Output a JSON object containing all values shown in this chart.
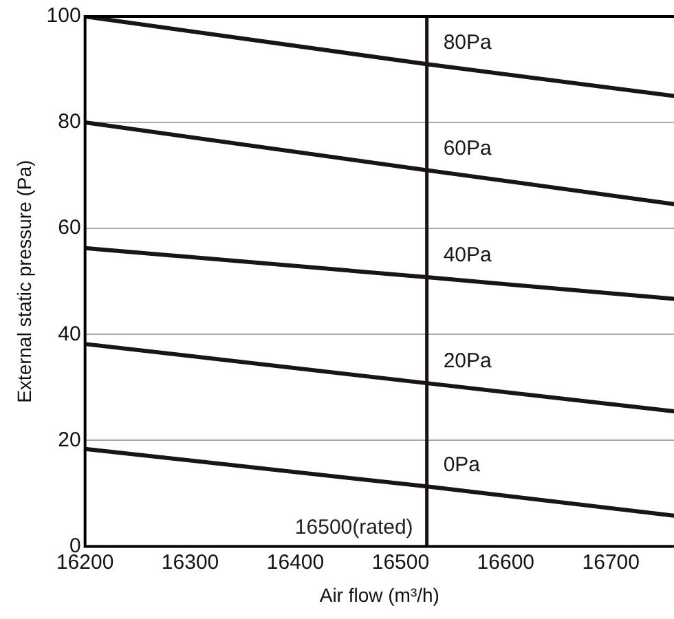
{
  "chart_data": {
    "type": "line",
    "xlabel": "Air flow (m³/h)",
    "ylabel": "External static pressure (Pa)",
    "x": [
      16200,
      16525,
      16760
    ],
    "series": [
      {
        "name": "80Pa",
        "color": "#1a1414",
        "values": [
          100,
          91,
          85
        ]
      },
      {
        "name": "60Pa",
        "color": "#1a1414",
        "values": [
          80,
          71,
          64.6
        ]
      },
      {
        "name": "40Pa",
        "color": "#1a1414",
        "values": [
          56.3,
          50.8,
          46.7
        ]
      },
      {
        "name": "20Pa",
        "color": "#1a1414",
        "values": [
          38.2,
          30.8,
          25.5
        ]
      },
      {
        "name": "0Pa",
        "color": "#1a1414",
        "values": [
          18.4,
          11.3,
          5.8
        ]
      }
    ],
    "xlim": [
      16200,
      16760
    ],
    "xticks": [
      16200,
      16300,
      16400,
      16500,
      16600,
      16700
    ],
    "ylim": [
      0,
      100
    ],
    "yticks": [
      0,
      20,
      40,
      60,
      80,
      100
    ],
    "ref_lines": [
      {
        "axis": "x",
        "value": 16525,
        "label": "16500(rated)",
        "color": "#1a1414"
      }
    ],
    "grid": "y",
    "legend": false,
    "marker": "none",
    "line_style": "solid"
  }
}
